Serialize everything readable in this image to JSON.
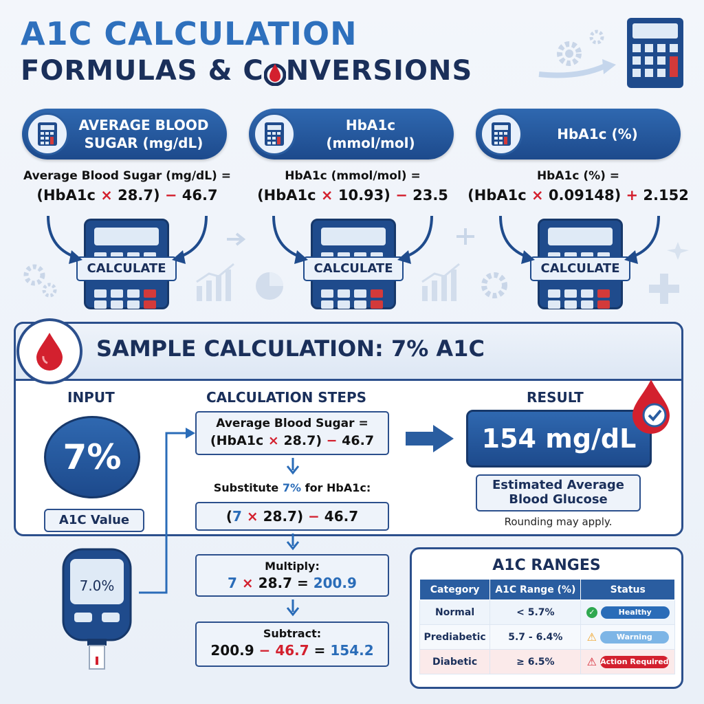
{
  "header": {
    "title_line1": "A1C CALCULATION",
    "title_line2_a": "FORMULAS & C",
    "title_line2_b": "NVERSIONS"
  },
  "tabs": [
    {
      "label_l1": "AVERAGE BLOOD",
      "label_l2": "SUGAR (mg/dL)"
    },
    {
      "label_l1": "HbA1c",
      "label_l2": "(mmol/mol)"
    },
    {
      "label_l1": "HbA1c (%)",
      "label_l2": ""
    }
  ],
  "formulas": [
    {
      "l1": "Average Blood Sugar (mg/dL) =",
      "open": "(HbA1c ",
      "op1": "×",
      "num": " 28.7) ",
      "op2": "−",
      "tail": " 46.7"
    },
    {
      "l1": "HbA1c (mmol/mol) =",
      "open": "(HbA1c ",
      "op1": "×",
      "num": " 10.93) ",
      "op2": "−",
      "tail": " 23.5"
    },
    {
      "l1": "HbA1c (%) =",
      "open": "(HbA1c ",
      "op1": "×",
      "num": " 0.09148) ",
      "op2": "+",
      "tail": " 2.152"
    }
  ],
  "calculate_label": "CALCULATE",
  "sample": {
    "title": "SAMPLE CALCULATION: 7% A1C",
    "input_head": "INPUT",
    "steps_head": "CALCULATION STEPS",
    "result_head": "RESULT",
    "input_value": "7%",
    "input_label": "A1C Value",
    "meter_display": "7.0%",
    "step1_l1": "Average Blood Sugar =",
    "step1_l2_a": "(HbA1c ",
    "step1_l2_op1": "×",
    "step1_l2_b": " 28.7) ",
    "step1_l2_op2": "−",
    "step1_l2_c": " 46.7",
    "substitute_a": "Substitute ",
    "substitute_val": "7%",
    "substitute_b": " for HbA1c:",
    "step2_a": "(",
    "step2_val": "7",
    "step2_op1": " × ",
    "step2_b": "28.7) ",
    "step2_op2": "−",
    "step2_c": " 46.7",
    "multiply_label": "Multiply:",
    "multiply_a": "7",
    "multiply_op": " × ",
    "multiply_b": "28.7 = ",
    "multiply_res": "200.9",
    "subtract_label": "Subtract:",
    "subtract_a": "200.9 ",
    "subtract_op": "−",
    "subtract_b": " 46.7",
    "subtract_eq": " = ",
    "subtract_res": "154.2",
    "result_value": "154 mg/dL",
    "result_label_l1": "Estimated Average",
    "result_label_l2": "Blood Glucose",
    "rounding_note": "Rounding may apply."
  },
  "ranges": {
    "title": "A1C RANGES",
    "headers": [
      "Category",
      "A1C Range (%)",
      "Status"
    ],
    "rows": [
      {
        "category": "Normal",
        "range": "< 5.7%",
        "status": "Healthy",
        "icon": "check-icon",
        "color": "#2a6cb8"
      },
      {
        "category": "Prediabetic",
        "range": "5.7 - 6.4%",
        "status": "Warning",
        "icon": "warning-icon",
        "color": "#7db5e6"
      },
      {
        "category": "Diabetic",
        "range": "≥ 6.5%",
        "status": "Action Required",
        "icon": "alert-icon",
        "color": "#d3202e"
      }
    ]
  },
  "colors": {
    "navy": "#1a2f5a",
    "blue": "#2e70bd",
    "red": "#d3202e"
  }
}
